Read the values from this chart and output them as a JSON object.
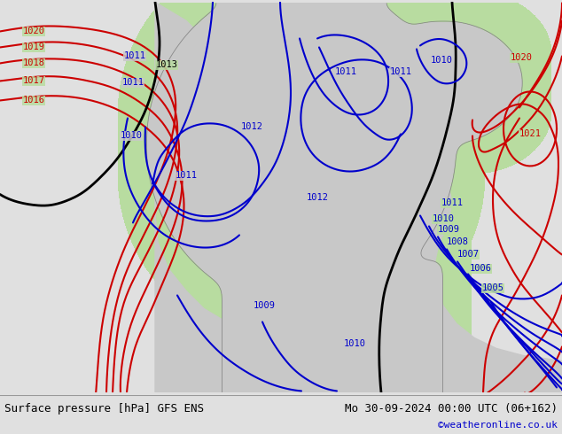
{
  "title_left": "Surface pressure [hPa] GFS ENS",
  "title_right": "Mo 30-09-2024 00:00 UTC (06+162)",
  "copyright": "©weatheronline.co.uk",
  "bg_land_color": "#b8dca0",
  "bg_sea_color": "#c8c8c8",
  "bg_bar_color": "#e0e0e0",
  "contour_blue_color": "#0000cc",
  "contour_red_color": "#cc0000",
  "contour_black_color": "#000000",
  "coast_color": "#888888",
  "text_left_color": "#000000",
  "text_right_color": "#000000",
  "copyright_color": "#0000cc",
  "fig_width": 6.34,
  "fig_height": 4.9,
  "dpi": 100
}
